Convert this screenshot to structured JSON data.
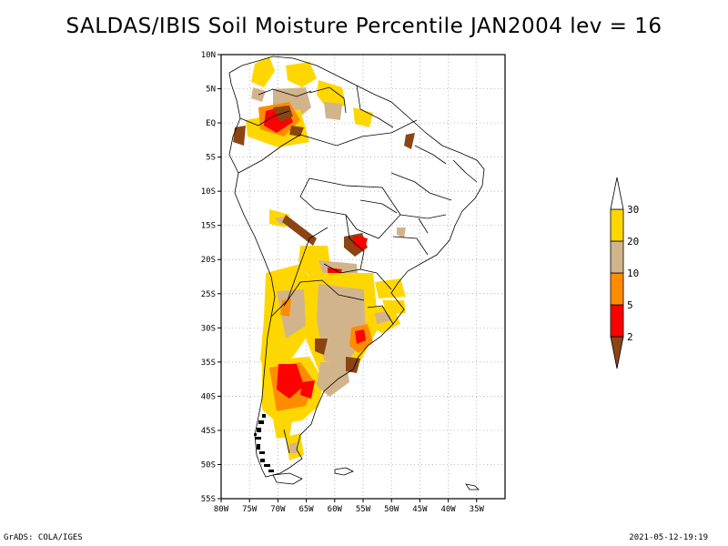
{
  "title": "SALDAS/IBIS Soil Moisture Percentile JAN2004 lev = 16",
  "footer": {
    "left": "GrADS: COLA/IGES",
    "right": "2021-05-12-19:19"
  },
  "map": {
    "lon_range": [
      -80,
      -30
    ],
    "lat_range": [
      -55,
      10
    ],
    "lon_ticks": [
      {
        "value": -80,
        "label": "80W"
      },
      {
        "value": -75,
        "label": "75W"
      },
      {
        "value": -70,
        "label": "70W"
      },
      {
        "value": -65,
        "label": "65W"
      },
      {
        "value": -60,
        "label": "60W"
      },
      {
        "value": -55,
        "label": "55W"
      },
      {
        "value": -50,
        "label": "50W"
      },
      {
        "value": -45,
        "label": "45W"
      },
      {
        "value": -40,
        "label": "40W"
      },
      {
        "value": -35,
        "label": "35W"
      }
    ],
    "lat_ticks": [
      {
        "value": 10,
        "label": "10N"
      },
      {
        "value": 5,
        "label": "5N"
      },
      {
        "value": 0,
        "label": "EQ"
      },
      {
        "value": -5,
        "label": "5S"
      },
      {
        "value": -10,
        "label": "10S"
      },
      {
        "value": -15,
        "label": "15S"
      },
      {
        "value": -20,
        "label": "20S"
      },
      {
        "value": -25,
        "label": "25S"
      },
      {
        "value": -30,
        "label": "30S"
      },
      {
        "value": -35,
        "label": "35S"
      },
      {
        "value": -40,
        "label": "40S"
      },
      {
        "value": -45,
        "label": "45S"
      },
      {
        "value": -50,
        "label": "50S"
      },
      {
        "value": -55,
        "label": "55S"
      }
    ],
    "gridlines": true
  },
  "legend": {
    "boundaries": [
      "2",
      "5",
      "10",
      "20",
      "30"
    ],
    "colors": [
      "#8b4513",
      "#ff0000",
      "#ff8c00",
      "#d2b48c",
      "#ffd700",
      "#ffffff"
    ]
  }
}
